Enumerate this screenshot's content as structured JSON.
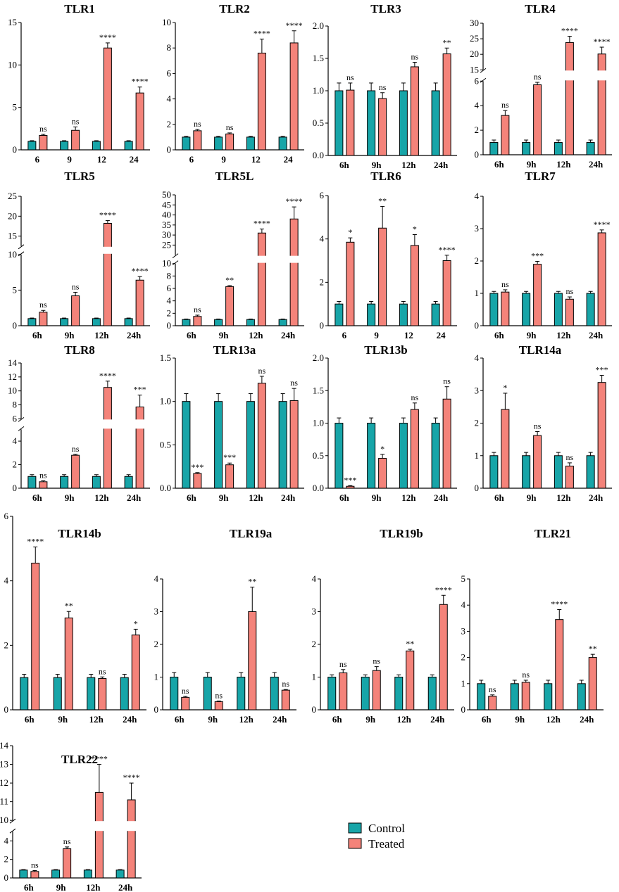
{
  "figure": {
    "colors": {
      "control": "#17a5a8",
      "treated": "#f4837a",
      "axis": "#000000"
    },
    "legend": [
      "Control",
      "Treated"
    ]
  },
  "chart_data": [
    {
      "type": "bar",
      "title": "TLR1",
      "categories": [
        "6",
        "9",
        "12",
        "24"
      ],
      "ylim": [
        0,
        15
      ],
      "yticks": [
        0,
        5,
        10,
        15
      ],
      "series": [
        {
          "name": "Control",
          "values": [
            1,
            1,
            1,
            1
          ],
          "errors": [
            0.08,
            0.08,
            0.08,
            0.08
          ]
        },
        {
          "name": "Treated",
          "values": [
            1.7,
            2.3,
            12.0,
            6.7
          ],
          "errors": [
            0.12,
            0.4,
            0.6,
            0.7
          ]
        }
      ],
      "significance": [
        "ns",
        "ns",
        "****",
        "****"
      ]
    },
    {
      "type": "bar",
      "title": "TLR2",
      "categories": [
        "6",
        "9",
        "12",
        "24"
      ],
      "ylim": [
        0,
        10
      ],
      "yticks": [
        0,
        2,
        4,
        6,
        8,
        10
      ],
      "series": [
        {
          "name": "Control",
          "values": [
            1,
            1,
            1,
            1
          ],
          "errors": [
            0.06,
            0.06,
            0.06,
            0.06
          ]
        },
        {
          "name": "Treated",
          "values": [
            1.5,
            1.25,
            7.6,
            8.4
          ],
          "errors": [
            0.1,
            0.08,
            1.1,
            0.95
          ]
        }
      ],
      "significance": [
        "ns",
        "ns",
        "****",
        "****"
      ]
    },
    {
      "type": "bar",
      "title": "TLR3",
      "categories": [
        "6h",
        "9h",
        "12h",
        "24h"
      ],
      "ylim": [
        0,
        2.0
      ],
      "yticks": [
        "0.0",
        "0.5",
        "1.0",
        "1.5",
        "2.0"
      ],
      "series": [
        {
          "name": "Control",
          "values": [
            1,
            1,
            1,
            1
          ],
          "errors": [
            0.12,
            0.12,
            0.12,
            0.12
          ]
        },
        {
          "name": "Treated",
          "values": [
            1.01,
            0.88,
            1.37,
            1.57
          ],
          "errors": [
            0.11,
            0.09,
            0.07,
            0.09
          ]
        }
      ],
      "significance": [
        "ns",
        "ns",
        "ns",
        "**"
      ]
    },
    {
      "type": "bar",
      "title": "TLR4",
      "categories": [
        "6h",
        "9h",
        "12h",
        "24h"
      ],
      "broken_axis": {
        "lower": [
          0,
          6
        ],
        "upper": [
          15,
          30
        ]
      },
      "yticks": [
        0,
        2,
        4,
        6,
        15,
        20,
        25,
        30
      ],
      "series": [
        {
          "name": "Control",
          "values": [
            1,
            1,
            1,
            1
          ],
          "errors": [
            0.2,
            0.2,
            0.2,
            0.2
          ]
        },
        {
          "name": "Treated",
          "values": [
            3.2,
            5.7,
            23.8,
            20.1
          ],
          "errors": [
            0.4,
            0.2,
            2.0,
            2.2
          ]
        }
      ],
      "significance": [
        "ns",
        "ns",
        "****",
        "****"
      ]
    },
    {
      "type": "bar",
      "title": "TLR5",
      "categories": [
        "6h",
        "9h",
        "12h",
        "24h"
      ],
      "broken_axis": {
        "lower": [
          0,
          10
        ],
        "upper": [
          12.5,
          25
        ]
      },
      "yticks": [
        0,
        5,
        10,
        15,
        20,
        25
      ],
      "series": [
        {
          "name": "Control",
          "values": [
            1,
            1,
            1,
            1
          ],
          "errors": [
            0.08,
            0.08,
            0.08,
            0.08
          ]
        },
        {
          "name": "Treated",
          "values": [
            1.9,
            4.2,
            18.2,
            6.4
          ],
          "errors": [
            0.25,
            0.5,
            0.7,
            0.5
          ]
        }
      ],
      "significance": [
        "ns",
        "ns",
        "****",
        "****"
      ]
    },
    {
      "type": "bar",
      "title": "TLR5L",
      "categories": [
        "6h",
        "9h",
        "12h",
        "24h"
      ],
      "broken_axis": {
        "lower": [
          0,
          10
        ],
        "upper": [
          20,
          50
        ]
      },
      "yticks": [
        0,
        2,
        4,
        6,
        8,
        10,
        25,
        30,
        35,
        40,
        45,
        50
      ],
      "series": [
        {
          "name": "Control",
          "values": [
            1,
            1,
            1,
            1
          ],
          "errors": [
            0.08,
            0.08,
            0.08,
            0.08
          ]
        },
        {
          "name": "Treated",
          "values": [
            1.5,
            6.3,
            31.0,
            38.0
          ],
          "errors": [
            0.2,
            0.15,
            2.0,
            6.0
          ]
        }
      ],
      "significance": [
        "ns",
        "**",
        "****",
        "****"
      ]
    },
    {
      "type": "bar",
      "title": "TLR6",
      "categories": [
        "6",
        "9",
        "12",
        "24"
      ],
      "ylim": [
        0,
        6
      ],
      "yticks": [
        0,
        2,
        4,
        6
      ],
      "series": [
        {
          "name": "Control",
          "values": [
            1,
            1,
            1,
            1
          ],
          "errors": [
            0.12,
            0.12,
            0.12,
            0.12
          ]
        },
        {
          "name": "Treated",
          "values": [
            3.85,
            4.5,
            3.7,
            3.0
          ],
          "errors": [
            0.2,
            1.0,
            0.5,
            0.25
          ]
        }
      ],
      "significance": [
        "*",
        "**",
        "*",
        "****"
      ]
    },
    {
      "type": "bar",
      "title": "TLR7",
      "categories": [
        "6h",
        "9h",
        "12h",
        "24h"
      ],
      "ylim": [
        0,
        4
      ],
      "yticks": [
        0,
        1,
        2,
        3,
        4
      ],
      "series": [
        {
          "name": "Control",
          "values": [
            1,
            1,
            1,
            1
          ],
          "errors": [
            0.06,
            0.06,
            0.06,
            0.06
          ]
        },
        {
          "name": "Treated",
          "values": [
            1.04,
            1.9,
            0.82,
            2.87
          ],
          "errors": [
            0.07,
            0.09,
            0.07,
            0.09
          ]
        }
      ],
      "significance": [
        "ns",
        "***",
        "ns",
        "****"
      ]
    },
    {
      "type": "bar",
      "title": "TLR8",
      "categories": [
        "6h",
        "9h",
        "12h",
        "24h"
      ],
      "broken_axis": {
        "lower": [
          0,
          5
        ],
        "upper": [
          6,
          14
        ]
      },
      "yticks": [
        0,
        2,
        4,
        6,
        8,
        10,
        12,
        14
      ],
      "series": [
        {
          "name": "Control",
          "values": [
            1,
            1,
            1,
            1
          ],
          "errors": [
            0.15,
            0.15,
            0.15,
            0.15
          ]
        },
        {
          "name": "Treated",
          "values": [
            0.55,
            2.8,
            10.5,
            7.7
          ],
          "errors": [
            0.08,
            0.08,
            0.9,
            1.7
          ]
        }
      ],
      "significance": [
        "ns",
        "ns",
        "****",
        "***"
      ]
    },
    {
      "type": "bar",
      "title": "TLR13a",
      "categories": [
        "6h",
        "9h",
        "12h",
        "24h"
      ],
      "ylim": [
        0,
        1.5
      ],
      "yticks": [
        "0.0",
        "0.5",
        "1.0",
        "1.5"
      ],
      "series": [
        {
          "name": "Control",
          "values": [
            1,
            1,
            1,
            1
          ],
          "errors": [
            0.09,
            0.09,
            0.09,
            0.09
          ]
        },
        {
          "name": "Treated",
          "values": [
            0.17,
            0.27,
            1.21,
            1.01
          ],
          "errors": [
            0.01,
            0.02,
            0.08,
            0.14
          ]
        }
      ],
      "significance": [
        "***",
        "***",
        "ns",
        "ns"
      ]
    },
    {
      "type": "bar",
      "title": "TLR13b",
      "categories": [
        "6h",
        "9h",
        "12h",
        "24h"
      ],
      "ylim": [
        0,
        2.0
      ],
      "yticks": [
        "0.0",
        "0.5",
        "1.0",
        "1.5",
        "2.0"
      ],
      "series": [
        {
          "name": "Control",
          "values": [
            1,
            1,
            1,
            1
          ],
          "errors": [
            0.08,
            0.08,
            0.08,
            0.08
          ]
        },
        {
          "name": "Treated",
          "values": [
            0.03,
            0.46,
            1.21,
            1.37
          ],
          "errors": [
            0.01,
            0.06,
            0.1,
            0.19
          ]
        }
      ],
      "significance": [
        "***",
        "*",
        "ns",
        "ns"
      ]
    },
    {
      "type": "bar",
      "title": "TLR14a",
      "categories": [
        "6h",
        "9h",
        "12h",
        "24h"
      ],
      "ylim": [
        0,
        4
      ],
      "yticks": [
        0,
        1,
        2,
        3,
        4
      ],
      "series": [
        {
          "name": "Control",
          "values": [
            1,
            1,
            1,
            1
          ],
          "errors": [
            0.1,
            0.1,
            0.1,
            0.1
          ]
        },
        {
          "name": "Treated",
          "values": [
            2.42,
            1.62,
            0.68,
            3.25
          ],
          "errors": [
            0.5,
            0.12,
            0.1,
            0.22
          ]
        }
      ],
      "significance": [
        "*",
        "ns",
        "ns",
        "***"
      ]
    },
    {
      "type": "bar",
      "title": "TLR14b",
      "categories": [
        "6h",
        "9h",
        "12h",
        "24h"
      ],
      "ylim": [
        0,
        6
      ],
      "yticks": [
        0,
        2,
        4,
        6
      ],
      "series": [
        {
          "name": "Control",
          "values": [
            1,
            1,
            1,
            1
          ],
          "errors": [
            0.1,
            0.1,
            0.1,
            0.1
          ]
        },
        {
          "name": "Treated",
          "values": [
            4.55,
            2.85,
            0.97,
            2.32
          ],
          "errors": [
            0.5,
            0.2,
            0.05,
            0.18
          ]
        }
      ],
      "significance": [
        "****",
        "**",
        "ns",
        "*"
      ]
    },
    {
      "type": "bar",
      "title": "TLR19a",
      "categories": [
        "6h",
        "9h",
        "12h",
        "24h"
      ],
      "ylim": [
        0,
        4
      ],
      "yticks": [
        0,
        1,
        2,
        3,
        4
      ],
      "series": [
        {
          "name": "Control",
          "values": [
            1,
            1,
            1,
            1
          ],
          "errors": [
            0.14,
            0.14,
            0.14,
            0.14
          ]
        },
        {
          "name": "Treated",
          "values": [
            0.38,
            0.25,
            3.0,
            0.6
          ],
          "errors": [
            0.03,
            0.02,
            0.75,
            0.02
          ]
        }
      ],
      "significance": [
        "ns",
        "ns",
        "**",
        "ns"
      ]
    },
    {
      "type": "bar",
      "title": "TLR19b",
      "categories": [
        "6h",
        "9h",
        "12h",
        "24h"
      ],
      "ylim": [
        0,
        4
      ],
      "yticks": [
        0,
        1,
        2,
        3,
        4
      ],
      "series": [
        {
          "name": "Control",
          "values": [
            1,
            1,
            1,
            1
          ],
          "errors": [
            0.07,
            0.07,
            0.07,
            0.07
          ]
        },
        {
          "name": "Treated",
          "values": [
            1.13,
            1.2,
            1.8,
            3.22
          ],
          "errors": [
            0.1,
            0.12,
            0.05,
            0.28
          ]
        }
      ],
      "significance": [
        "ns",
        "ns",
        "**",
        "****"
      ]
    },
    {
      "type": "bar",
      "title": "TLR21",
      "categories": [
        "6h",
        "9h",
        "12h",
        "24h"
      ],
      "ylim": [
        0,
        5
      ],
      "yticks": [
        0,
        1,
        2,
        3,
        4,
        5
      ],
      "series": [
        {
          "name": "Control",
          "values": [
            1,
            1,
            1,
            1
          ],
          "errors": [
            0.13,
            0.13,
            0.13,
            0.13
          ]
        },
        {
          "name": "Treated",
          "values": [
            0.52,
            1.05,
            3.45,
            2.0
          ],
          "errors": [
            0.05,
            0.08,
            0.38,
            0.12
          ]
        }
      ],
      "significance": [
        "ns",
        "ns",
        "****",
        "**"
      ]
    },
    {
      "type": "bar",
      "title": "TLR22",
      "categories": [
        "6h",
        "9h",
        "12h",
        "24h"
      ],
      "broken_axis": {
        "lower": [
          0,
          5
        ],
        "upper": [
          10,
          14
        ]
      },
      "yticks": [
        0,
        2,
        4,
        10,
        11,
        12,
        13,
        14
      ],
      "series": [
        {
          "name": "Control",
          "values": [
            0.85,
            0.85,
            0.85,
            0.85
          ],
          "errors": [
            0.05,
            0.05,
            0.05,
            0.05
          ]
        },
        {
          "name": "Treated",
          "values": [
            0.7,
            3.15,
            11.5,
            11.1
          ],
          "errors": [
            0.1,
            0.2,
            1.5,
            0.9
          ]
        }
      ],
      "significance": [
        "ns",
        "ns",
        "****",
        "****"
      ]
    }
  ]
}
